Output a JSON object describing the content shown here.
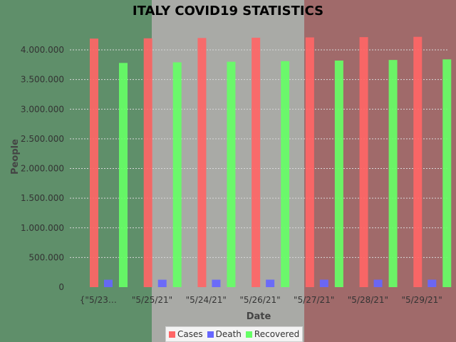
{
  "colors": {
    "flag_green": "#5f8f6a",
    "flag_white": "#a9aaa6",
    "flag_red": "#a06a6a",
    "cases": "#ff6666",
    "death": "#6666ff",
    "recovered": "#66ff66",
    "grid": "#d8d8d8"
  },
  "chart_data": {
    "type": "bar",
    "title": "ITALY COVID19 STATISTICS",
    "xlabel": "Date",
    "ylabel": "People",
    "ylim": [
      0,
      4000000
    ],
    "yticks": [
      0,
      500000,
      1000000,
      1500000,
      2000000,
      2500000,
      3000000,
      3500000,
      4000000
    ],
    "ytick_labels": [
      "0",
      "500.000",
      "1.000.000",
      "1.500.000",
      "2.000.000",
      "2.500.000",
      "3.000.000",
      "3.500.000",
      "4.000.000"
    ],
    "categories": [
      "{\"5/23…",
      "\"5/25/21\"",
      "\"5/24/21\"",
      "\"5/26/21\"",
      "\"5/27/21\"",
      "\"5/28/21\"",
      "\"5/29/21\""
    ],
    "series": [
      {
        "name": "Cases",
        "values": [
          4190000,
          4195000,
          4200000,
          4205000,
          4210000,
          4215000,
          4220000
        ]
      },
      {
        "name": "Death",
        "values": [
          125000,
          125000,
          125500,
          126000,
          126000,
          126200,
          126300
        ]
      },
      {
        "name": "Recovered",
        "values": [
          3780000,
          3790000,
          3800000,
          3810000,
          3820000,
          3830000,
          3840000
        ]
      }
    ],
    "grid": true,
    "legend": "bottom-center"
  }
}
